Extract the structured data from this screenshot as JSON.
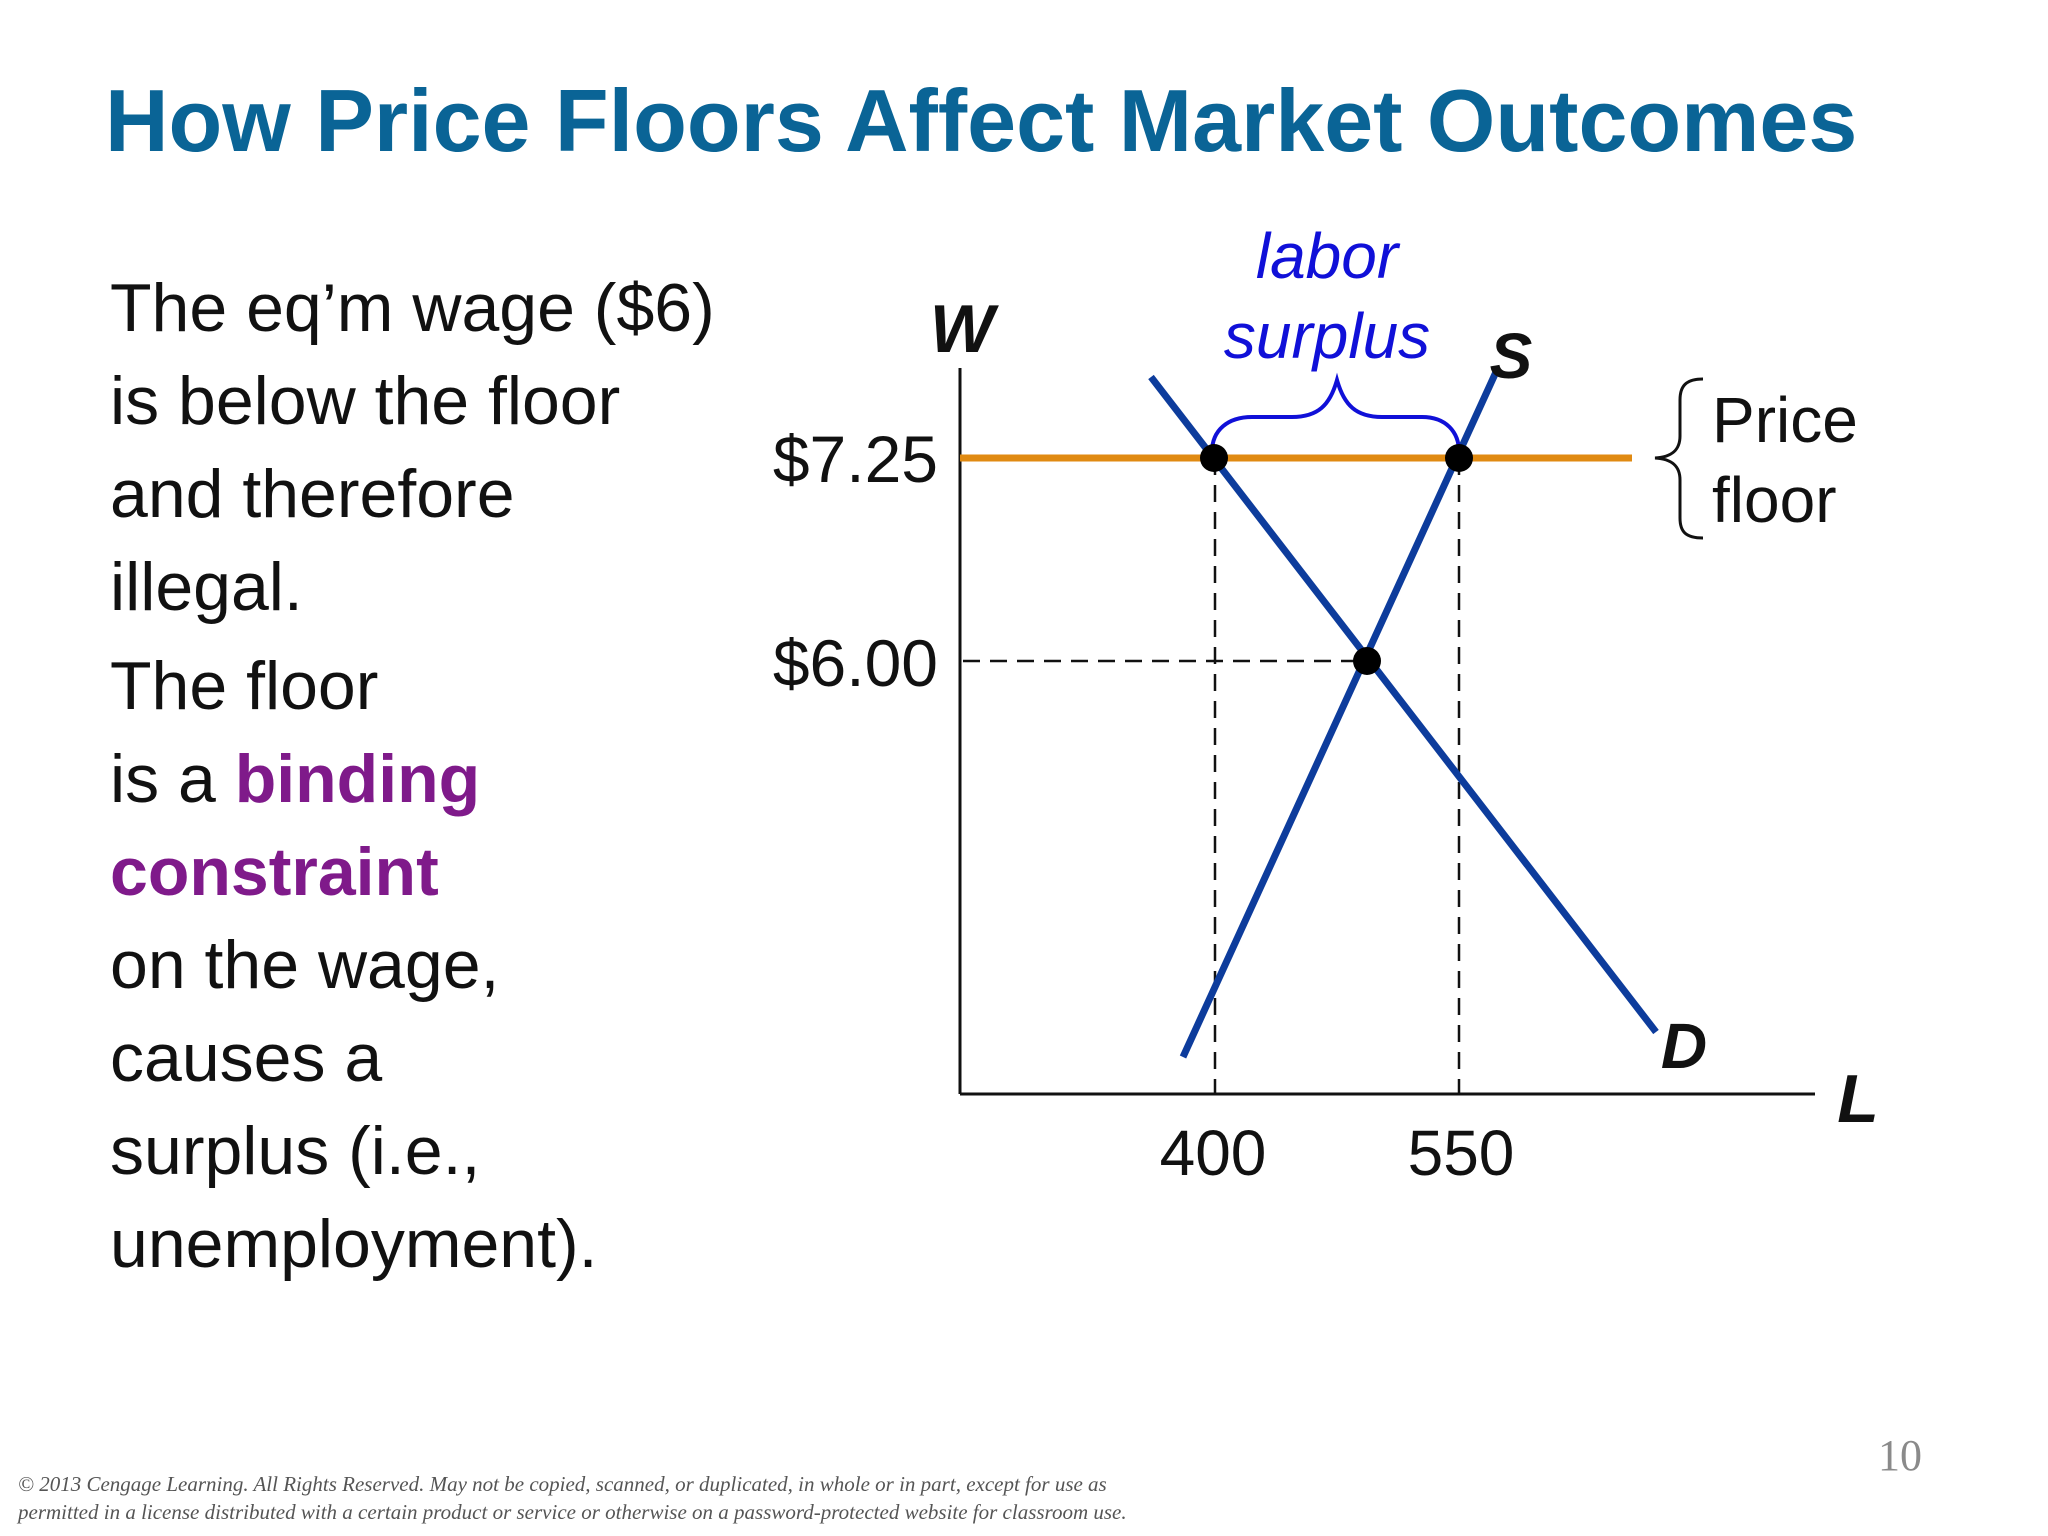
{
  "title": "How Price Floors Affect Market Outcomes",
  "text": {
    "para1": [
      "The eq’m wage ($6)",
      "is below the floor",
      "and therefore",
      "illegal."
    ],
    "para2_line1": "The floor",
    "para2_line2_prefix": "is a ",
    "para2_highlight1": "binding",
    "para2_highlight2": "constraint",
    "para2_rest": [
      "on the wage,",
      "causes a",
      "surplus (i.e.,",
      "unemployment)."
    ]
  },
  "diagram": {
    "y_axis_label": "W",
    "x_axis_label": "L",
    "supply_label": "S",
    "demand_label": "D",
    "floor_wage_label": "$7.25",
    "eq_wage_label": "$6.00",
    "qty_demanded_label": "400",
    "qty_supplied_label": "550",
    "surplus_label_line1": "labor",
    "surplus_label_line2": "surplus",
    "price_floor_line1": "Price",
    "price_floor_line2": "floor",
    "colors": {
      "curves": "#0d3c9c",
      "floor_line": "#e08a12",
      "surplus_text": "#1010d8",
      "points": "#000000"
    }
  },
  "footer": {
    "line1": "© 2013 Cengage Learning. All Rights Reserved. May not be copied, scanned, or duplicated, in whole or in part, except for use as",
    "line2": "permitted in a license distributed with a certain product or service or otherwise on a password-protected website for classroom use."
  },
  "page_number": "10"
}
